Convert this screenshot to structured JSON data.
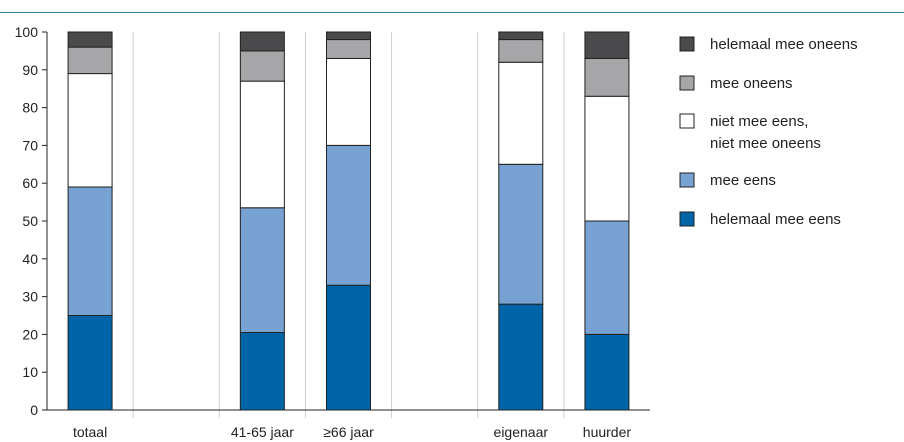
{
  "chart_data": {
    "type": "bar",
    "stacked": true,
    "categories": [
      "totaal",
      "",
      "41-65 jaar",
      "≥66 jaar",
      "",
      "eigenaar",
      "huurder"
    ],
    "series": [
      {
        "name": "helemaal mee eens",
        "color": "#0065a8",
        "values": [
          25,
          null,
          20.5,
          33,
          null,
          28,
          20
        ]
      },
      {
        "name": "mee eens",
        "color": "#77a2d1",
        "values": [
          34,
          null,
          33,
          37,
          null,
          37,
          30
        ]
      },
      {
        "name": "niet mee eens, niet mee oneens",
        "color": "#ffffff",
        "values": [
          30,
          null,
          33.5,
          23,
          null,
          27,
          33
        ]
      },
      {
        "name": "mee oneens",
        "color": "#a6a6a8",
        "values": [
          7,
          null,
          8,
          5,
          null,
          6,
          10
        ]
      },
      {
        "name": "helemaal mee oneens",
        "color": "#4a4a4c",
        "values": [
          4,
          null,
          5,
          2,
          null,
          2,
          7
        ]
      }
    ],
    "legend_order": [
      "helemaal mee oneens",
      "mee oneens",
      "niet mee eens, niet mee oneens",
      "mee eens",
      "helemaal mee eens"
    ],
    "legend_lines": [
      [
        "helemaal mee oneens"
      ],
      [
        "mee oneens"
      ],
      [
        "niet mee eens,",
        "niet mee oneens"
      ],
      [
        "mee eens"
      ],
      [
        "helemaal mee eens"
      ]
    ],
    "yticks": [
      0,
      10,
      20,
      30,
      40,
      50,
      60,
      70,
      80,
      90,
      100
    ],
    "ylim": [
      0,
      100
    ],
    "grid": "vertical separators",
    "legend_position": "right"
  }
}
